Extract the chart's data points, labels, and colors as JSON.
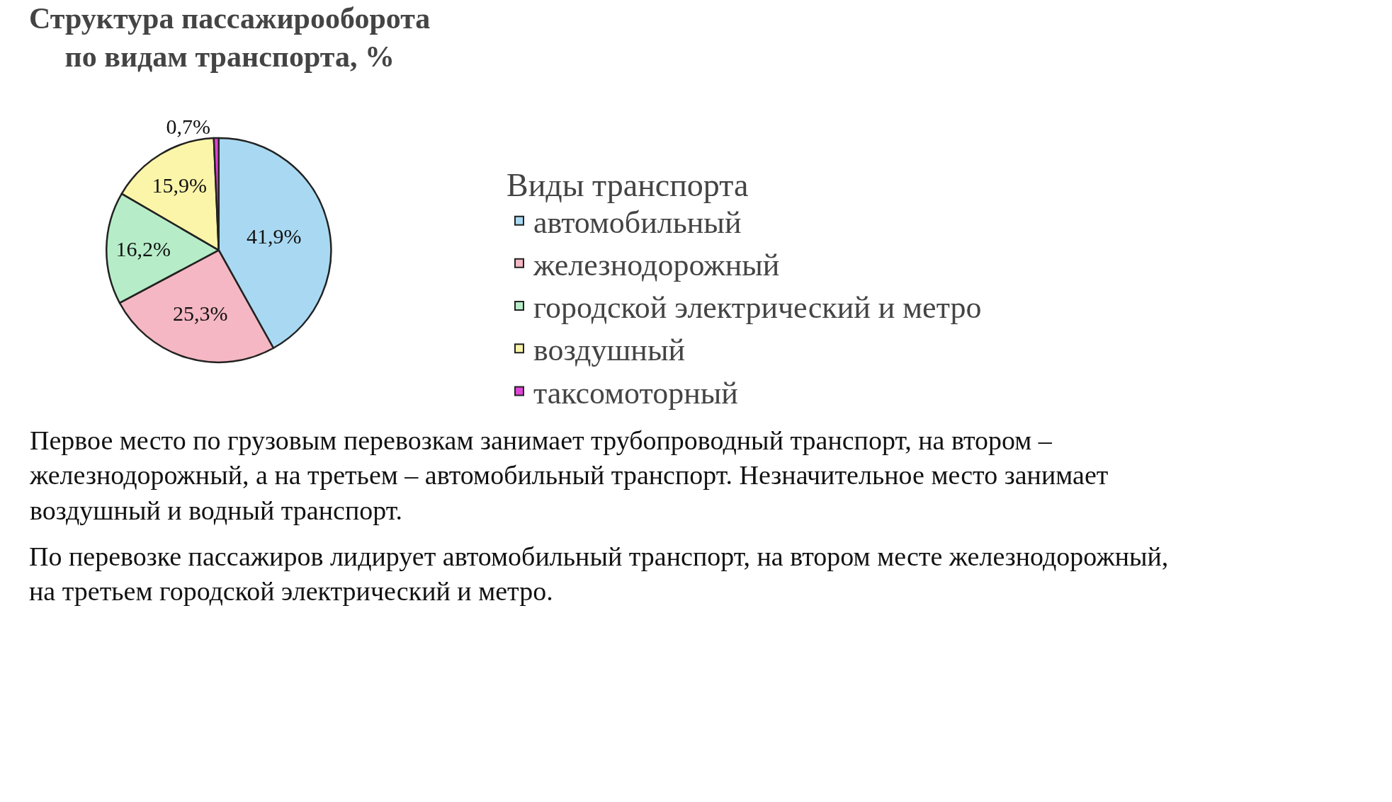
{
  "chart_data": {
    "type": "pie",
    "title": "Структура пассажирооборота\nпо видам транспорта, %",
    "categories": [
      "автомобильный",
      "железнодорожный",
      "городской электрический и метро",
      "воздушный",
      "таксомоторный"
    ],
    "values": [
      41.9,
      25.3,
      16.2,
      15.9,
      0.7
    ],
    "colors": [
      "#a9d9f2",
      "#f5b7c3",
      "#b6edc8",
      "#fbf5a9",
      "#e044d9"
    ],
    "value_labels": [
      "41,9%",
      "25,3%",
      "16,2%",
      "15,9%",
      "0,7%"
    ],
    "legend": "right",
    "legend_title": "Виды транспорта",
    "annotations": [
      "Первое место по грузовым перевозкам занимает трубопроводный транспорт, на втором – железнодорожный, а на третьем – автомобильный транспорт. Незначительное место занимает воздушный и водный транспорт.",
      "По перевозке пассажиров лидирует автомобильный транспорт, на втором месте железнодорожный, на третьем городской электрический и метро."
    ]
  }
}
